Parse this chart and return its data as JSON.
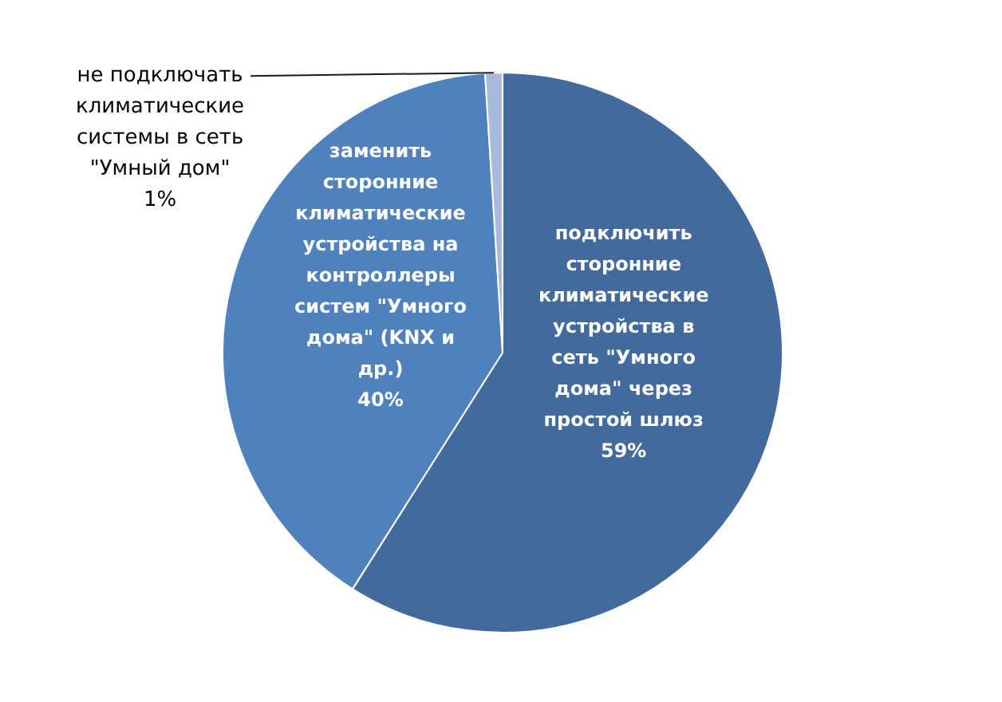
{
  "chart_data": {
    "type": "pie",
    "categories": [
      "подключить сторонние климатические устройства в сеть \"Умного дома\" через простой шлюз",
      "заменить сторонние климатические устройства на контроллеры систем \"Умного дома\" (KNX и др.)",
      "не подключать климатические системы в сеть \"Умный дом\""
    ],
    "values": [
      59,
      40,
      1
    ],
    "colors": [
      "#426a9c",
      "#4f81bd",
      "#a9bbdc"
    ],
    "value_labels": [
      "59%",
      "40%",
      "1%"
    ]
  }
}
